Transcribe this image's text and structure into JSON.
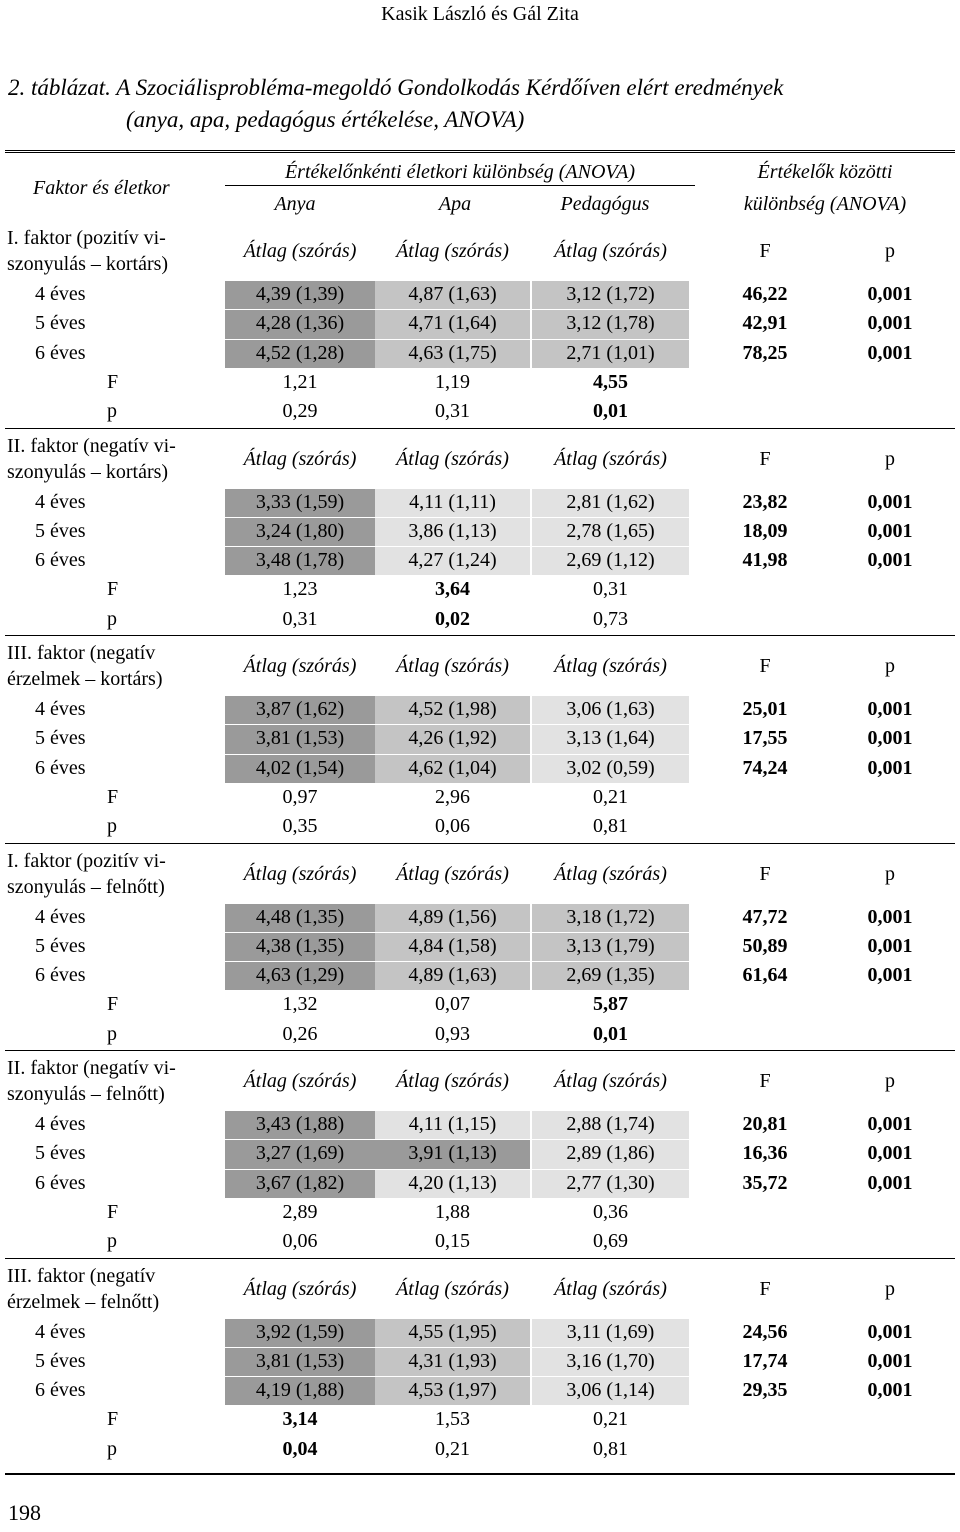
{
  "header": "Kasik László és Gál Zita",
  "caption": {
    "number": "2. táblázat.",
    "line1": "A Szociálisprobléma-megoldó Gondolkodás Kérdőíven elért eredmények",
    "line2": "(anya, apa, pedagógus értékelése, ANOVA)"
  },
  "table": {
    "col_factor": "Faktor és életkor",
    "col_group_within": "Értékelőnkénti életkori különbség (ANOVA)",
    "col_anya": "Anya",
    "col_apa": "Apa",
    "col_pedagogus": "Pedagógus",
    "col_group_between_1": "Értékelők közötti",
    "col_group_between_2": "különbség (ANOVA)",
    "sub_mean": "Átlag (szórás)",
    "sub_F": "F",
    "sub_p": "p",
    "sections": [
      {
        "title1": "I. faktor (pozitív vi-",
        "title2": "szonyulás – kortárs)",
        "rows": [
          {
            "label": "4 éves",
            "anya": "4,39 (1,39)",
            "apa": "4,87 (1,63)",
            "ped": "3,12 (1,72)",
            "F": "46,22",
            "p": "0,001"
          },
          {
            "label": "5 éves",
            "anya": "4,28 (1,36)",
            "apa": "4,71 (1,64)",
            "ped": "3,12 (1,78)",
            "F": "42,91",
            "p": "0,001"
          },
          {
            "label": "6 éves",
            "anya": "4,52 (1,28)",
            "apa": "4,63 (1,75)",
            "ped": "2,71 (1,01)",
            "F": "78,25",
            "p": "0,001"
          }
        ],
        "F": {
          "label": "F",
          "anya": "1,21",
          "apa": "1,19",
          "ped": "4,55"
        },
        "p": {
          "label": "p",
          "anya": "0,29",
          "apa": "0,31",
          "ped": "0,01"
        }
      },
      {
        "title1": "II. faktor (negatív vi-",
        "title2": "szonyulás – kortárs)",
        "rows": [
          {
            "label": "4 éves",
            "anya": "3,33 (1,59)",
            "apa": "4,11 (1,11)",
            "ped": "2,81 (1,62)",
            "F": "23,82",
            "p": "0,001"
          },
          {
            "label": "5 éves",
            "anya": "3,24 (1,80)",
            "apa": "3,86 (1,13)",
            "ped": "2,78 (1,65)",
            "F": "18,09",
            "p": "0,001"
          },
          {
            "label": "6 éves",
            "anya": "3,48 (1,78)",
            "apa": "4,27 (1,24)",
            "ped": "2,69 (1,12)",
            "F": "41,98",
            "p": "0,001"
          }
        ],
        "F": {
          "label": "F",
          "anya": "1,23",
          "apa": "3,64",
          "ped": "0,31"
        },
        "p": {
          "label": "p",
          "anya": "0,31",
          "apa": "0,02",
          "ped": "0,73"
        }
      },
      {
        "title1": "III. faktor (negatív",
        "title2": "érzelmek – kortárs)",
        "rows": [
          {
            "label": "4 éves",
            "anya": "3,87 (1,62)",
            "apa": "4,52 (1,98)",
            "ped": "3,06 (1,63)",
            "F": "25,01",
            "p": "0,001"
          },
          {
            "label": "5 éves",
            "anya": "3,81 (1,53)",
            "apa": "4,26 (1,92)",
            "ped": "3,13 (1,64)",
            "F": "17,55",
            "p": "0,001"
          },
          {
            "label": "6 éves",
            "anya": "4,02 (1,54)",
            "apa": "4,62 (1,04)",
            "ped": "3,02 (0,59)",
            "F": "74,24",
            "p": "0,001"
          }
        ],
        "F": {
          "label": "F",
          "anya": "0,97",
          "apa": "2,96",
          "ped": "0,21"
        },
        "p": {
          "label": "p",
          "anya": "0,35",
          "apa": "0,06",
          "ped": "0,81"
        }
      },
      {
        "title1": "I. faktor (pozitív vi-",
        "title2": "szonyulás – felnőtt)",
        "rows": [
          {
            "label": "4 éves",
            "anya": "4,48 (1,35)",
            "apa": "4,89 (1,56)",
            "ped": "3,18 (1,72)",
            "F": "47,72",
            "p": "0,001"
          },
          {
            "label": "5 éves",
            "anya": "4,38 (1,35)",
            "apa": "4,84 (1,58)",
            "ped": "3,13 (1,79)",
            "F": "50,89",
            "p": "0,001"
          },
          {
            "label": "6 éves",
            "anya": "4,63 (1,29)",
            "apa": "4,89 (1,63)",
            "ped": "2,69 (1,35)",
            "F": "61,64",
            "p": "0,001"
          }
        ],
        "F": {
          "label": "F",
          "anya": "1,32",
          "apa": "0,07",
          "ped": "5,87"
        },
        "p": {
          "label": "p",
          "anya": "0,26",
          "apa": "0,93",
          "ped": "0,01"
        }
      },
      {
        "title1": "II. faktor (negatív vi-",
        "title2": "szonyulás – felnőtt)",
        "rows": [
          {
            "label": "4 éves",
            "anya": "3,43 (1,88)",
            "apa": "4,11 (1,15)",
            "ped": "2,88 (1,74)",
            "F": "20,81",
            "p": "0,001"
          },
          {
            "label": "5 éves",
            "anya": "3,27 (1,69)",
            "apa": "3,91 (1,13)",
            "ped": "2,89 (1,86)",
            "F": "16,36",
            "p": "0,001"
          },
          {
            "label": "6 éves",
            "anya": "3,67 (1,82)",
            "apa": "4,20 (1,13)",
            "ped": "2,77 (1,30)",
            "F": "35,72",
            "p": "0,001"
          }
        ],
        "F": {
          "label": "F",
          "anya": "2,89",
          "apa": "1,88",
          "ped": "0,36"
        },
        "p": {
          "label": "p",
          "anya": "0,06",
          "apa": "0,15",
          "ped": "0,69"
        }
      },
      {
        "title1": "III. faktor (negatív",
        "title2": "érzelmek – felnőtt)",
        "rows": [
          {
            "label": "4 éves",
            "anya": "3,92 (1,59)",
            "apa": "4,55 (1,95)",
            "ped": "3,11 (1,69)",
            "F": "24,56",
            "p": "0,001"
          },
          {
            "label": "5 éves",
            "anya": "3,81 (1,53)",
            "apa": "4,31 (1,93)",
            "ped": "3,16 (1,70)",
            "F": "17,74",
            "p": "0,001"
          },
          {
            "label": "6 éves",
            "anya": "4,19 (1,88)",
            "apa": "4,53 (1,97)",
            "ped": "3,06 (1,14)",
            "F": "29,35",
            "p": "0,001"
          }
        ],
        "F": {
          "label": "F",
          "anya": "3,14",
          "apa": "1,53",
          "ped": "0,21"
        },
        "p": {
          "label": "p",
          "anya": "0,04",
          "apa": "0,21",
          "ped": "0,81"
        }
      }
    ]
  },
  "page_number": "198"
}
